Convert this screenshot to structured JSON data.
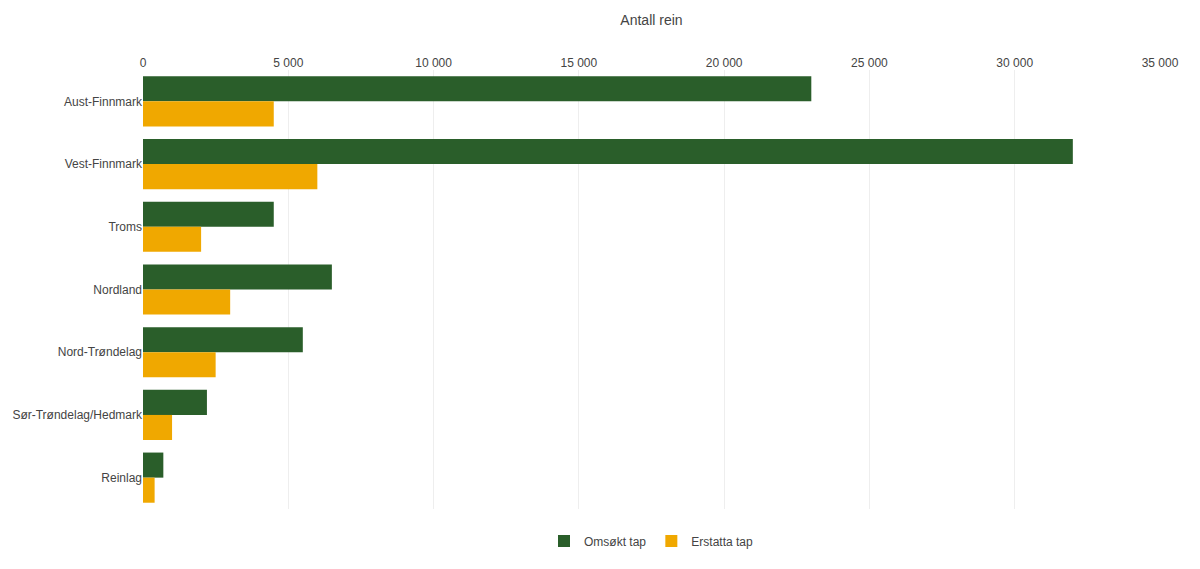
{
  "chart_data": {
    "type": "bar",
    "orientation": "horizontal",
    "xlabel": "Antall rein",
    "categories": [
      "Aust-Finnmark",
      "Vest-Finnmark",
      "Troms",
      "Nordland",
      "Nord-Trøndelag",
      "Sør-Trøndelag/Hedmark",
      "Reinlag"
    ],
    "series": [
      {
        "name": "Omsøkt tap",
        "color": "#2a5e2a",
        "values": [
          23000,
          32000,
          4500,
          6500,
          5500,
          2200,
          700
        ]
      },
      {
        "name": "Erstatta tap",
        "color": "#f0a800",
        "values": [
          4500,
          6000,
          2000,
          3000,
          2500,
          1000,
          400
        ]
      }
    ],
    "xlim": [
      0,
      35000
    ],
    "xticks": [
      0,
      {
        "value": 5000,
        "label": "5 000"
      },
      {
        "value": 10000,
        "label": "10 000"
      },
      {
        "value": 15000,
        "label": "15 000"
      },
      {
        "value": 20000,
        "label": "20 000"
      },
      {
        "value": 25000,
        "label": "25 000"
      },
      {
        "value": 30000,
        "label": "30 000"
      },
      {
        "value": 35000,
        "label": "35 000"
      }
    ],
    "grid": true,
    "legend": "bottom"
  }
}
